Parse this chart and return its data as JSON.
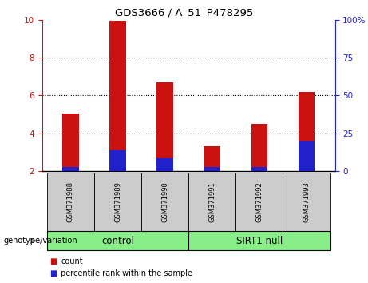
{
  "title": "GDS3666 / A_51_P478295",
  "categories": [
    "GSM371988",
    "GSM371989",
    "GSM371990",
    "GSM371991",
    "GSM371992",
    "GSM371993"
  ],
  "red_tops": [
    5.05,
    9.95,
    6.7,
    3.3,
    4.5,
    6.2
  ],
  "blue_tops": [
    2.22,
    3.1,
    2.7,
    2.22,
    2.22,
    3.6
  ],
  "bar_bottom": 2.0,
  "ylim_left": [
    2,
    10
  ],
  "ylim_right": [
    0,
    100
  ],
  "yticks_left": [
    2,
    4,
    6,
    8,
    10
  ],
  "yticks_right": [
    0,
    25,
    50,
    75,
    100
  ],
  "ytick_labels_right": [
    "0",
    "25",
    "50",
    "75",
    "100%"
  ],
  "red_color": "#cc1111",
  "blue_color": "#2222cc",
  "group1_label": "control",
  "group2_label": "SIRT1 null",
  "group_bg_color": "#88ee88",
  "sample_bg_color": "#cccccc",
  "legend_count": "count",
  "legend_pct": "percentile rank within the sample",
  "genotype_label": "genotype/variation",
  "bar_width": 0.35,
  "grid_yticks": [
    4,
    6,
    8
  ]
}
